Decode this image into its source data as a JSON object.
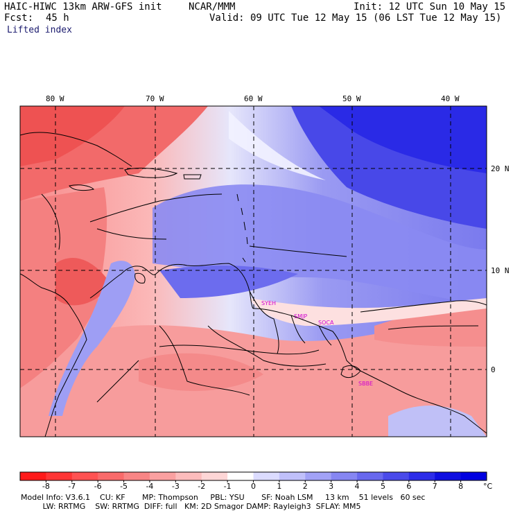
{
  "header": {
    "model_title": "HAIC-HIWC 13km ARW-GFS init",
    "center": "NCAR/MMM",
    "forecast_label": "Fcst:",
    "forecast_hour": "45 h",
    "init_time": "Init: 12 UTC Sun 10 May 15",
    "valid_time": "Valid: 09 UTC Tue 12 May 15 (06 LST Tue 12 May 15)",
    "field_name": "Lifted index"
  },
  "map": {
    "lon_labels": [
      "80 W",
      "70 W",
      "60 W",
      "50 W",
      "40 W"
    ],
    "lat_labels": [
      "20 N",
      "10 N",
      "0"
    ],
    "stations": [
      "SYEH",
      "SMJP",
      "SOCA",
      "SBBE"
    ],
    "colors": {
      "border": "#000000",
      "gridline": "#000000",
      "station_label": "#d000d0"
    }
  },
  "colorbar": {
    "tick_labels": [
      "-8",
      "-7",
      "-6",
      "-5",
      "-4",
      "-3",
      "-2",
      "-1",
      "0",
      "1",
      "2",
      "3",
      "4",
      "5",
      "6",
      "7",
      "8"
    ],
    "unit": "°C",
    "colors": [
      "#ff1a1a",
      "#ff3535",
      "#ff5252",
      "#f96a6a",
      "#f88585",
      "#faa0a0",
      "#fcbcbc",
      "#fed6d6",
      "#ffffff",
      "#dcdcff",
      "#c0c0fa",
      "#a2a2f6",
      "#8686f2",
      "#6868ee",
      "#4a4aea",
      "#2c2ce8",
      "#0e0ee0"
    ]
  },
  "footer": {
    "line1": "Model Info: V3.6.1    CU: KF       MP: Thompson     PBL: YSU       SF: Noah LSM     13 km    51 levels   60 sec",
    "line2": "         LW: RRTMG    SW: RRTMG  DIFF: full   KM: 2D Smagor DAMP: Rayleigh3  SFLAY: MM5"
  }
}
